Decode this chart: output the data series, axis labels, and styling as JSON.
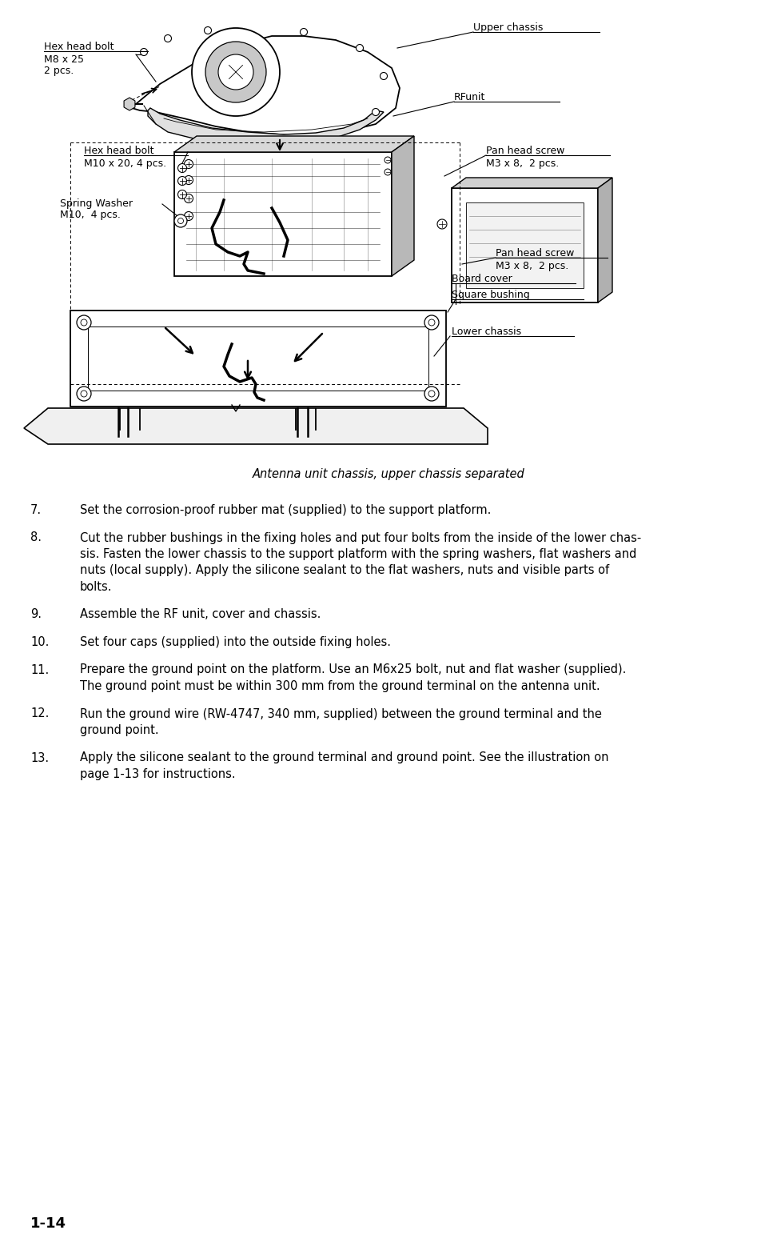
{
  "bg_color": "#ffffff",
  "page_number": "1-14",
  "caption": "Antenna unit chassis, upper chassis separated",
  "label_upper_chassis": "Upper chassis",
  "label_rfunit": "RFunit",
  "label_hex_bolt_m8_line1": "Hex head bolt",
  "label_hex_bolt_m8_line2": "M8 x 25",
  "label_hex_bolt_m8_line3": "2 pcs.",
  "label_hex_bolt_m10_line1": "Hex head bolt",
  "label_hex_bolt_m10_line2": "M10 x 20, 4 pcs.",
  "label_spring_washer_line1": "Spring Washer",
  "label_spring_washer_line2": "M10,  4 pcs.",
  "label_pan_screw_top_line1": "Pan head screw",
  "label_pan_screw_top_line2": "M3 x 8,  2 pcs.",
  "label_pan_screw_bot_line1": "Pan head screw",
  "label_pan_screw_bot_line2": "M3 x 8,  2 pcs.",
  "label_board_cover": "Board cover",
  "label_square_bushing": "Square bushing",
  "label_lower_chassis": "Lower chassis",
  "numbered_items": [
    {
      "num": "7.",
      "text": "Set the corrosion-proof rubber mat (supplied) to the support platform."
    },
    {
      "num": "8.",
      "text": "Cut the rubber bushings in the fixing holes and put four bolts from the inside of the lower chas-\nsis. Fasten the lower chassis to the support platform with the spring washers, flat washers and\nnuts (local supply). Apply the silicone sealant to the flat washers, nuts and visible parts of\nbolts."
    },
    {
      "num": "9.",
      "text": "Assemble the RF unit, cover and chassis."
    },
    {
      "num": "10.",
      "text": "Set four caps (supplied) into the outside fixing holes."
    },
    {
      "num": "11.",
      "text": "Prepare the ground point on the platform. Use an M6x25 bolt, nut and flat washer (supplied).\nThe ground point must be within 300 mm from the ground terminal on the antenna unit."
    },
    {
      "num": "12.",
      "text": "Run the ground wire (RW-4747, 340 mm, supplied) between the ground terminal and the\nground point."
    },
    {
      "num": "13.",
      "text": "Apply the silicone sealant to the ground terminal and ground point. See the illustration on\npage 1-13 for instructions."
    }
  ],
  "font_size_label": 9.0,
  "font_size_body": 10.5,
  "font_size_caption": 10.5,
  "font_size_page": 13.0
}
